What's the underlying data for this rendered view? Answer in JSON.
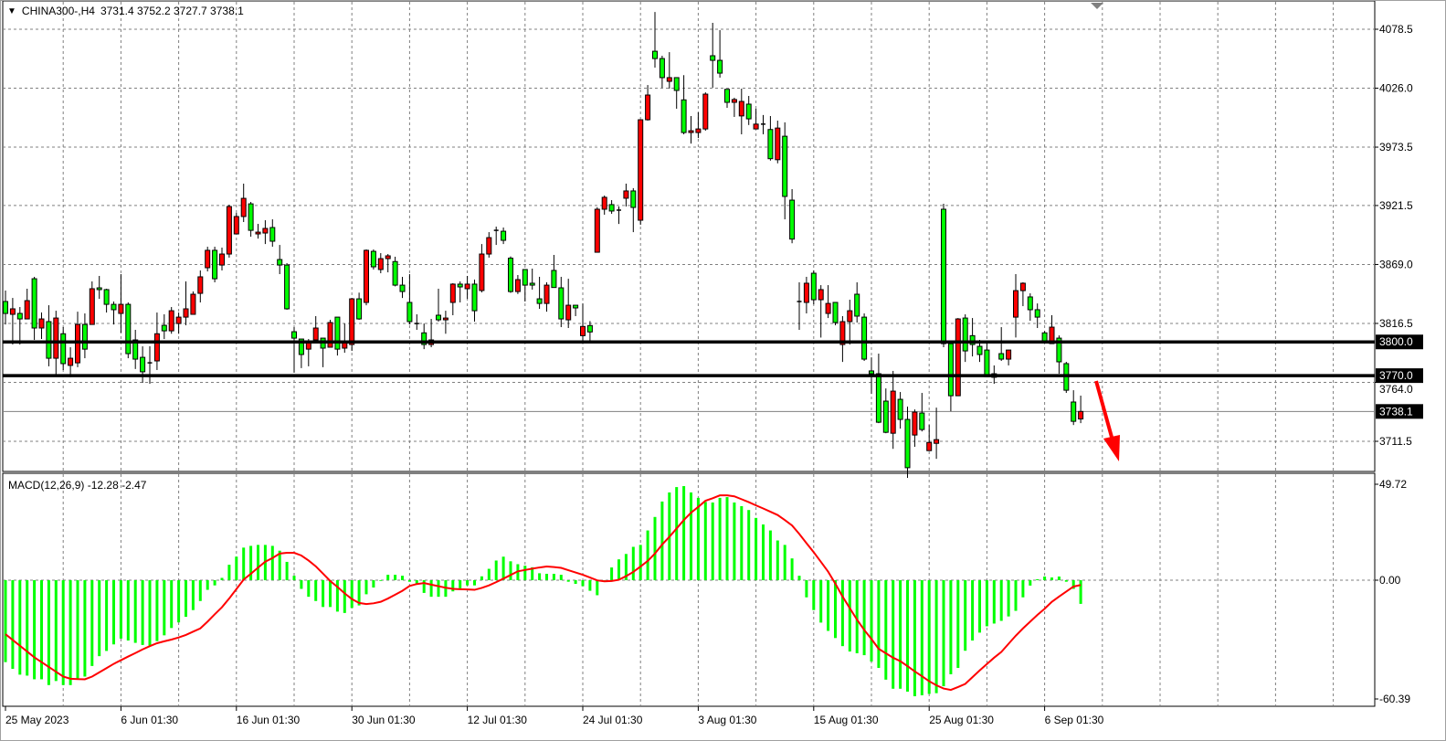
{
  "header": {
    "menu_icon": "triangle-down-icon",
    "symbol_label": "CHINA300-,H4",
    "ohlc_text": "3731.4 3752.2 3727.7 3738.1"
  },
  "macd_label": {
    "name": "MACD(12,26,9)",
    "main": "-12.28",
    "signal": "-2.47"
  },
  "chart_data": [
    {
      "type": "candlestick",
      "symbol": "CHINA300-",
      "timeframe": "H4",
      "colors": {
        "up": "#ff0000",
        "down": "#00ff00",
        "outline": "#000000",
        "grid": "#808080"
      },
      "y_ticks": [
        "4078.5",
        "4026.0",
        "3973.5",
        "3921.5",
        "3869.0",
        "3816.5",
        "3764.0",
        "3711.5"
      ],
      "x_labels": [
        "25 May 2023",
        "6 Jun 01:30",
        "16 Jun 01:30",
        "30 Jun 01:30",
        "12 Jul 01:30",
        "24 Jul 01:30",
        "3 Aug 01:30",
        "15 Aug 01:30",
        "25 Aug 01:30",
        "6 Sep 01:30"
      ],
      "x_label_every_bars": 16,
      "grid": true,
      "horizontal_lines": [
        {
          "price": 3800.0,
          "label": "3800.0"
        },
        {
          "price": 3770.0,
          "label": "3770.0"
        }
      ],
      "bid_line": {
        "price": 3738.1,
        "label": "3738.1"
      },
      "annotation": {
        "type": "arrow",
        "direction": "down",
        "color": "#ff0000"
      },
      "ohlc": [
        [
          3836.0,
          3845.8,
          3815.6,
          3825.4
        ],
        [
          3824.6,
          3839.2,
          3797.7,
          3829.5
        ],
        [
          3825.4,
          3831.1,
          3797.7,
          3820.5
        ],
        [
          3820.5,
          3847.4,
          3820.5,
          3836.8
        ],
        [
          3856.3,
          3858.0,
          3801.8,
          3812.4
        ],
        [
          3812.4,
          3826.2,
          3802.6,
          3820.5
        ],
        [
          3818.1,
          3832.7,
          3778.3,
          3785.5
        ],
        [
          3785.5,
          3827.8,
          3770.0,
          3821.3
        ],
        [
          3807.3,
          3813.2,
          3775.0,
          3780.7
        ],
        [
          3779.1,
          3795.3,
          3768.5,
          3785.5
        ],
        [
          3781.4,
          3827.0,
          3777.5,
          3815.6
        ],
        [
          3815.6,
          3825.4,
          3785.5,
          3793.6
        ],
        [
          3815.6,
          3853.9,
          3815.6,
          3847.4
        ],
        [
          3848.2,
          3858.8,
          3838.4,
          3846.6
        ],
        [
          3846.6,
          3847.4,
          3826.2,
          3833.5
        ],
        [
          3833.5,
          3836.0,
          3815.6,
          3828.7
        ],
        [
          3825.4,
          3860.4,
          3808.1,
          3833.5
        ],
        [
          3833.5,
          3835.2,
          3785.5,
          3789.6
        ],
        [
          3801.8,
          3810.8,
          3775.9,
          3784.7
        ],
        [
          3786.3,
          3796.1,
          3763.6,
          3773.4
        ],
        [
          3781.4,
          3796.1,
          3762.8,
          3781.0
        ],
        [
          3783.1,
          3826.2,
          3775.0,
          3807.3
        ],
        [
          3814.8,
          3824.6,
          3802.6,
          3809.9
        ],
        [
          3809.9,
          3831.1,
          3807.3,
          3827.8
        ],
        [
          3816.4,
          3826.2,
          3807.3,
          3822.1
        ],
        [
          3822.1,
          3853.9,
          3814.8,
          3829.5
        ],
        [
          3824.6,
          3845.0,
          3824.6,
          3842.5
        ],
        [
          3843.3,
          3863.7,
          3835.2,
          3858.0
        ],
        [
          3866.1,
          3884.8,
          3862.8,
          3881.6
        ],
        [
          3881.6,
          3884.8,
          3853.1,
          3856.3
        ],
        [
          3868.5,
          3884.0,
          3863.7,
          3878.3
        ],
        [
          3878.3,
          3922.2,
          3875.1,
          3920.6
        ],
        [
          3896.2,
          3914.9,
          3896.2,
          3911.7
        ],
        [
          3911.7,
          3941.0,
          3906.8,
          3927.9
        ],
        [
          3923.0,
          3924.7,
          3893.7,
          3899.4
        ],
        [
          3896.2,
          3905.2,
          3892.1,
          3897.8
        ],
        [
          3897.0,
          3908.4,
          3887.2,
          3901.1
        ],
        [
          3901.9,
          3909.2,
          3884.8,
          3889.7
        ],
        [
          3873.4,
          3886.4,
          3860.4,
          3868.5
        ],
        [
          3868.5,
          3870.2,
          3828.7,
          3829.5
        ],
        [
          3809.1,
          3813.2,
          3772.6,
          3803.4
        ],
        [
          3802.6,
          3802.6,
          3776.7,
          3788.8
        ],
        [
          3793.6,
          3802.6,
          3778.3,
          3801.0
        ],
        [
          3801.8,
          3823.0,
          3801.0,
          3812.4
        ],
        [
          3803.4,
          3803.4,
          3777.5,
          3794.5
        ],
        [
          3795.3,
          3819.7,
          3795.3,
          3817.3
        ],
        [
          3822.1,
          3822.1,
          3787.9,
          3793.6
        ],
        [
          3794.5,
          3816.4,
          3790.4,
          3799.3
        ],
        [
          3797.7,
          3839.2,
          3792.0,
          3838.4
        ],
        [
          3838.4,
          3843.9,
          3819.7,
          3820.5
        ],
        [
          3835.2,
          3882.4,
          3832.7,
          3881.6
        ],
        [
          3880.7,
          3882.4,
          3864.5,
          3866.9
        ],
        [
          3864.5,
          3879.1,
          3861.2,
          3874.2
        ],
        [
          3874.2,
          3878.3,
          3862.0,
          3876.7
        ],
        [
          3871.6,
          3875.9,
          3849.5,
          3850.6
        ],
        [
          3850.6,
          3858.0,
          3839.2,
          3844.9
        ],
        [
          3835.2,
          3860.4,
          3815.6,
          3818.1
        ],
        [
          3816.4,
          3824.6,
          3810.8,
          3816.0
        ],
        [
          3808.1,
          3816.4,
          3793.6,
          3797.7
        ],
        [
          3797.7,
          3820.5,
          3795.3,
          3801.8
        ],
        [
          3823.8,
          3847.4,
          3818.1,
          3819.7
        ],
        [
          3819.7,
          3827.8,
          3807.3,
          3821.3
        ],
        [
          3835.2,
          3852.3,
          3823.8,
          3851.5
        ],
        [
          3851.5,
          3853.9,
          3835.2,
          3849.0
        ],
        [
          3847.4,
          3858.8,
          3838.4,
          3851.5
        ],
        [
          3851.5,
          3855.5,
          3818.1,
          3827.8
        ],
        [
          3845.8,
          3887.2,
          3844.1,
          3878.3
        ],
        [
          3878.3,
          3897.8,
          3875.1,
          3892.9
        ],
        [
          3899.4,
          3902.7,
          3886.4,
          3899.0
        ],
        [
          3898.6,
          3901.9,
          3887.2,
          3890.5
        ],
        [
          3874.6,
          3876.2,
          3843.7,
          3844.9
        ],
        [
          3844.9,
          3859.6,
          3842.7,
          3855.5
        ],
        [
          3864.5,
          3864.5,
          3836.0,
          3850.6
        ],
        [
          3852.3,
          3865.3,
          3846.6,
          3850.6
        ],
        [
          3838.4,
          3858.0,
          3829.5,
          3834.3
        ],
        [
          3834.3,
          3853.1,
          3827.0,
          3850.6
        ],
        [
          3863.7,
          3877.5,
          3848.2,
          3848.5
        ],
        [
          3848.2,
          3858.0,
          3813.2,
          3820.5
        ],
        [
          3819.7,
          3856.3,
          3812.4,
          3832.7
        ],
        [
          3832.7,
          3832.7,
          3823.0,
          3830.3
        ],
        [
          3805.6,
          3834.3,
          3800.9,
          3813.8
        ],
        [
          3814.6,
          3818.6,
          3799.9,
          3808.9
        ],
        [
          3879.9,
          3920.0,
          3879.9,
          3918.2
        ],
        [
          3918.2,
          3930.4,
          3913.3,
          3928.8
        ],
        [
          3922.3,
          3926.3,
          3914.1,
          3916.6
        ],
        [
          3917.4,
          3920.6,
          3905.1,
          3917.0
        ],
        [
          3928.0,
          3941.0,
          3920.6,
          3934.5
        ],
        [
          3934.5,
          3937.0,
          3897.8,
          3919.8
        ],
        [
          3908.4,
          3997.9,
          3904.3,
          3997.9
        ],
        [
          3997.9,
          4028.8,
          3997.1,
          4019.9
        ],
        [
          4058.9,
          4093.9,
          4044.3,
          4052.4
        ],
        [
          4052.4,
          4054.9,
          4026.4,
          4035.4
        ],
        [
          4032.1,
          4058.1,
          4025.6,
          4035.4
        ],
        [
          4035.4,
          4035.4,
          4007.7,
          4024.0
        ],
        [
          4015.6,
          4037.6,
          3984.9,
          3986.5
        ],
        [
          3986.5,
          4001.2,
          3976.7,
          3988.1
        ],
        [
          3986.5,
          4004.5,
          3981.6,
          3989.7
        ],
        [
          3989.7,
          4022.3,
          3988.1,
          4020.7
        ],
        [
          4054.9,
          4084.2,
          4026.4,
          4050.8
        ],
        [
          4050.8,
          4077.7,
          4035.4,
          4039.4
        ],
        [
          4025.0,
          4025.0,
          4008.5,
          4013.4
        ],
        [
          4013.4,
          4017.5,
          4000.4,
          4015.9
        ],
        [
          4001.3,
          4025.6,
          3984.9,
          4014.2
        ],
        [
          4011.8,
          4019.1,
          3993.2,
          3998.7
        ],
        [
          3989.7,
          4007.7,
          3989.7,
          3994.0
        ],
        [
          3994.0,
          4002.1,
          3984.9,
          3993.6
        ],
        [
          3989.2,
          4001.2,
          3961.5,
          3963.2
        ],
        [
          3962.3,
          3997.1,
          3959.1,
          3990.5
        ],
        [
          3983.2,
          3995.6,
          3909.2,
          3929.6
        ],
        [
          3926.3,
          3936.1,
          3887.9,
          3891.6
        ],
        [
          3836.0,
          3853.1,
          3810.8,
          3835.6
        ],
        [
          3835.2,
          3858.0,
          3825.4,
          3852.3
        ],
        [
          3861.2,
          3863.7,
          3833.5,
          3837.6
        ],
        [
          3837.6,
          3850.6,
          3803.9,
          3846.6
        ],
        [
          3825.4,
          3850.6,
          3821.3,
          3834.3
        ],
        [
          3835.2,
          3835.2,
          3814.8,
          3817.3
        ],
        [
          3797.7,
          3823.0,
          3782.2,
          3818.1
        ],
        [
          3818.1,
          3837.6,
          3797.7,
          3827.8
        ],
        [
          3842.5,
          3853.1,
          3817.3,
          3823.0
        ],
        [
          3822.1,
          3825.4,
          3783.1,
          3784.7
        ],
        [
          3774.2,
          3786.3,
          3753.7,
          3771.7
        ],
        [
          3771.7,
          3789.6,
          3727.7,
          3728.5
        ],
        [
          3747.3,
          3758.6,
          3718.7,
          3719.5
        ],
        [
          3718.7,
          3774.2,
          3704.8,
          3756.2
        ],
        [
          3748.9,
          3755.4,
          3722.8,
          3731.0
        ],
        [
          3731.0,
          3742.4,
          3679.0,
          3688.0
        ],
        [
          3717.1,
          3739.9,
          3706.6,
          3737.5
        ],
        [
          3736.7,
          3754.6,
          3720.3,
          3722.0
        ],
        [
          3703.2,
          3726.0,
          3703.2,
          3710.5
        ],
        [
          3709.7,
          3741.5,
          3695.9,
          3713.0
        ],
        [
          3918.2,
          3923.1,
          3795.3,
          3798.5
        ],
        [
          3798.5,
          3798.5,
          3738.3,
          3752.1
        ],
        [
          3752.1,
          3821.3,
          3752.1,
          3820.5
        ],
        [
          3821.3,
          3824.6,
          3782.2,
          3792.0
        ],
        [
          3805.6,
          3821.3,
          3787.1,
          3797.7
        ],
        [
          3796.1,
          3801.8,
          3782.2,
          3788.8
        ],
        [
          3792.8,
          3800.2,
          3768.5,
          3769.0
        ],
        [
          3768.5,
          3779.1,
          3762.7,
          3771.7
        ],
        [
          3789.6,
          3813.2,
          3783.1,
          3784.7
        ],
        [
          3784.7,
          3792.8,
          3779.1,
          3792.8
        ],
        [
          3822.1,
          3860.4,
          3804.0,
          3845.7
        ],
        [
          3845.7,
          3853.1,
          3831.9,
          3852.3
        ],
        [
          3840.1,
          3843.3,
          3818.9,
          3828.7
        ],
        [
          3828.7,
          3834.3,
          3812.4,
          3822.1
        ],
        [
          3808.1,
          3809.7,
          3799.3,
          3799.0
        ],
        [
          3798.5,
          3823.8,
          3798.5,
          3813.2
        ],
        [
          3803.4,
          3805.8,
          3771.7,
          3782.3
        ],
        [
          3780.7,
          3782.3,
          3754.6,
          3757.0
        ],
        [
          3746.5,
          3757.0,
          3726.0,
          3729.3
        ],
        [
          3731.4,
          3752.2,
          3727.7,
          3738.1
        ]
      ]
    },
    {
      "type": "bar+line",
      "indicator": "MACD(12,26,9)",
      "colors": {
        "histogram": "#00ff00",
        "signal": "#ff0000"
      },
      "y_ticks": [
        "49.72",
        "0.00",
        "-60.39"
      ],
      "ylim": [
        -60.39,
        49.72
      ],
      "main": [
        -42.5,
        -46,
        -49,
        -49.5,
        -51.4,
        -51.4,
        -54.4,
        -52.3,
        -54.4,
        -54.4,
        -51.4,
        -50,
        -44.5,
        -39.4,
        -36.7,
        -33.3,
        -30.3,
        -31.3,
        -32.5,
        -33.6,
        -33.9,
        -31.6,
        -28.6,
        -24.8,
        -21.9,
        -19,
        -15.5,
        -10.8,
        -5,
        -2.7,
        1.2,
        8,
        12.2,
        16.9,
        17.8,
        18.3,
        18.3,
        17.8,
        15.3,
        9.5,
        2.3,
        -4.5,
        -8.6,
        -10.8,
        -13.9,
        -13.9,
        -16.3,
        -17,
        -14.4,
        -13.1,
        -7.3,
        -3.8,
        -0.3,
        2.8,
        2.8,
        2.3,
        -0.8,
        -1.9,
        -6.6,
        -8.6,
        -8.6,
        -8.6,
        -5.8,
        -4.2,
        -2.7,
        -2.7,
        2,
        5.9,
        10.2,
        12.2,
        9.8,
        8.3,
        7.5,
        6.7,
        3.6,
        3.3,
        3.3,
        2.8,
        -0.8,
        -1.9,
        -3.1,
        -5.5,
        -7.8,
        -0.3,
        6.6,
        10.8,
        13.6,
        17.3,
        18.3,
        25.8,
        32.8,
        40.8,
        45.5,
        48.3,
        48.8,
        45.5,
        42.7,
        40.6,
        40.3,
        42.7,
        43.1,
        40.3,
        38.4,
        36.4,
        32.3,
        28.9,
        25.8,
        20.6,
        18.3,
        11.3,
        2.3,
        -8.9,
        -15.5,
        -22,
        -26.3,
        -30,
        -34.2,
        -37,
        -37.9,
        -38.9,
        -42.2,
        -45.5,
        -51.6,
        -56.3,
        -56.3,
        -57.8,
        -60.2,
        -59.7,
        -59,
        -58.6,
        -55,
        -48.8,
        -45.5,
        -36.6,
        -31.3,
        -27.2,
        -23.9,
        -22.5,
        -21.1,
        -18.8,
        -15.9,
        -8.9,
        -2.8,
        0.5,
        1.9,
        1.4,
        1.9,
        -0.8,
        -4.5,
        -12.28
      ],
      "signal": [
        -28,
        -31,
        -34,
        -37,
        -40,
        -42.5,
        -45,
        -47.5,
        -50,
        -51.1,
        -51.3,
        -51.4,
        -50,
        -47.8,
        -45.6,
        -43.4,
        -41.5,
        -39.6,
        -37.8,
        -35.9,
        -34.2,
        -32.7,
        -31.7,
        -30.8,
        -29.7,
        -28.4,
        -26.7,
        -25,
        -21.5,
        -17.7,
        -14,
        -9.5,
        -4.6,
        0.3,
        3.3,
        6.5,
        9.6,
        11.5,
        13.8,
        14.2,
        14.2,
        12.8,
        10.2,
        7.2,
        3.4,
        -0.4,
        -3.5,
        -6.8,
        -9.8,
        -11.8,
        -12.4,
        -12,
        -11.2,
        -9.5,
        -7.5,
        -5.5,
        -3,
        -2,
        -1.5,
        -2.3,
        -3.1,
        -3.9,
        -4.5,
        -4.7,
        -4.8,
        -5,
        -4,
        -2.7,
        -1,
        0.8,
        2.7,
        4.6,
        5.3,
        6,
        6.6,
        7.1,
        6.8,
        6.4,
        5.2,
        4,
        2.8,
        1.4,
        -0.1,
        -0.6,
        -0.4,
        0.2,
        2.1,
        4.3,
        7.1,
        10,
        13.8,
        18.5,
        22.5,
        26.8,
        31.2,
        35,
        38,
        41.2,
        42.5,
        44,
        44,
        43.5,
        42,
        40.5,
        38.8,
        37.2,
        35.5,
        33.8,
        31.2,
        28.4,
        24,
        19.2,
        14.5,
        9.5,
        4.4,
        -1.8,
        -8.5,
        -14.5,
        -20.5,
        -25.8,
        -30.5,
        -35.6,
        -37.9,
        -40.2,
        -42,
        -44.6,
        -47.3,
        -49.8,
        -52.4,
        -54.5,
        -56.2,
        -56.9,
        -55.4,
        -53.8,
        -50.3,
        -46.8,
        -43.5,
        -40.2,
        -37.2,
        -33,
        -28.8,
        -25,
        -21.5,
        -18,
        -14.8,
        -11.2,
        -8.5,
        -5.9,
        -3.3,
        -2.47
      ]
    }
  ]
}
